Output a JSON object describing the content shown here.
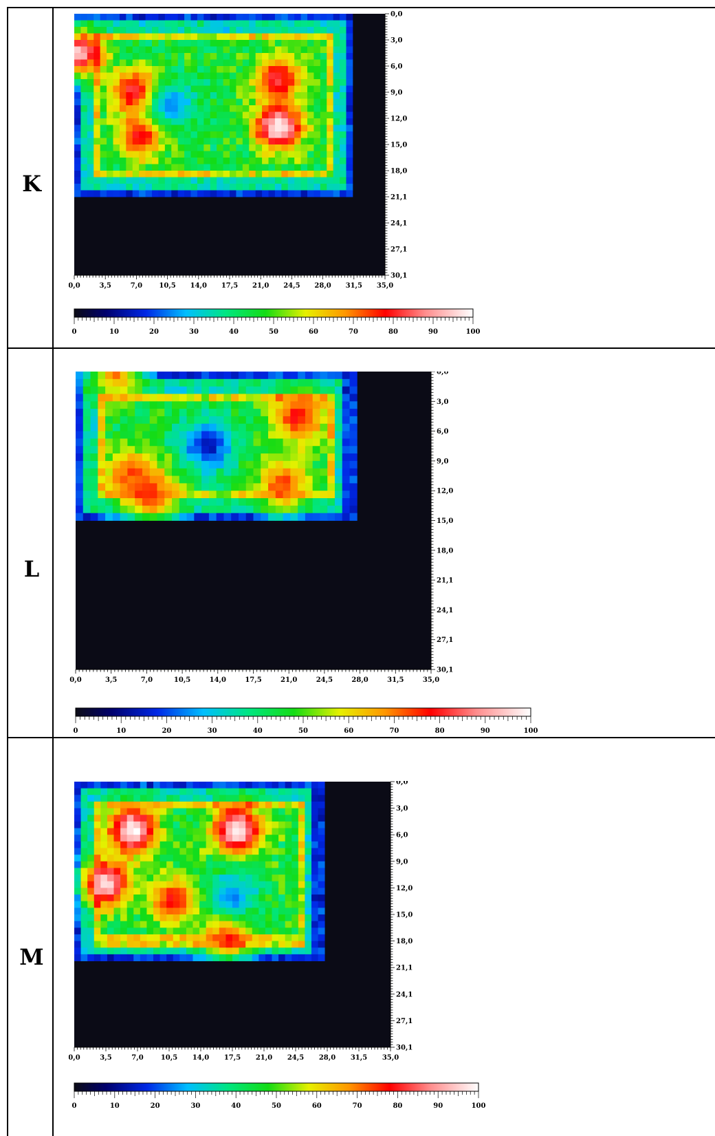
{
  "rows": [
    {
      "label": "K"
    },
    {
      "label": "L"
    },
    {
      "label": "M"
    }
  ],
  "chart_data": [
    {
      "type": "heatmap",
      "panel": "K",
      "x_ticks": [
        "0,0",
        "3,5",
        "7,0",
        "10,5",
        "14,0",
        "17,5",
        "21,0",
        "24,5",
        "28,0",
        "31,5",
        "35,0"
      ],
      "y_ticks": [
        "0,0",
        "3,0",
        "6,0",
        "9,0",
        "12,0",
        "15,0",
        "18,0",
        "21,1",
        "24,1",
        "27,1",
        "30,1"
      ],
      "xlim": [
        0,
        35
      ],
      "ylim": [
        0,
        30.1
      ],
      "y_axis_side": "right",
      "colorbar_ticks": [
        "0",
        "10",
        "20",
        "30",
        "40",
        "50",
        "60",
        "70",
        "80",
        "90",
        "100"
      ],
      "colorbar_range": [
        0,
        100
      ],
      "data_region": {
        "x": [
          0,
          31.5
        ],
        "y": [
          0,
          21.1
        ]
      },
      "hotspots": [
        {
          "x": 0.5,
          "y": 4.5,
          "value": 95
        },
        {
          "x": 7.0,
          "y": 9.0,
          "value": 85
        },
        {
          "x": 7.5,
          "y": 14.0,
          "value": 82
        },
        {
          "x": 23.0,
          "y": 13.0,
          "value": 100
        },
        {
          "x": 23.0,
          "y": 7.5,
          "value": 82
        },
        {
          "x": 11.0,
          "y": 10.5,
          "value": 25
        }
      ]
    },
    {
      "type": "heatmap",
      "panel": "L",
      "x_ticks": [
        "0,0",
        "3,5",
        "7,0",
        "10,5",
        "14,0",
        "17,5",
        "21,0",
        "24,5",
        "28,0",
        "31,5",
        "35,0"
      ],
      "y_ticks": [
        "0,0",
        "3,0",
        "6,0",
        "9,0",
        "12,0",
        "15,0",
        "18,0",
        "21,1",
        "24,1",
        "27,1",
        "30,1"
      ],
      "xlim": [
        0,
        35
      ],
      "ylim": [
        0,
        30.1
      ],
      "y_axis_side": "right",
      "colorbar_ticks": [
        "0",
        "10",
        "20",
        "30",
        "40",
        "50",
        "60",
        "70",
        "80",
        "90",
        "100"
      ],
      "colorbar_range": [
        0,
        100
      ],
      "data_region": {
        "x": [
          0,
          27.5
        ],
        "y": [
          0,
          15.0
        ]
      },
      "hotspots": [
        {
          "x": 5.5,
          "y": 10.5,
          "value": 72
        },
        {
          "x": 7.5,
          "y": 12.5,
          "value": 75
        },
        {
          "x": 20.5,
          "y": 11.5,
          "value": 74
        },
        {
          "x": 22.0,
          "y": 4.5,
          "value": 78
        },
        {
          "x": 4.0,
          "y": 0.3,
          "value": 68
        },
        {
          "x": 13.0,
          "y": 7.5,
          "value": 15
        }
      ]
    },
    {
      "type": "heatmap",
      "panel": "M",
      "x_ticks": [
        "0,0",
        "3,5",
        "7,0",
        "10,5",
        "14,0",
        "17,5",
        "21,0",
        "24,5",
        "28,0",
        "31,5",
        "35,0"
      ],
      "y_ticks": [
        "0,0",
        "3,0",
        "6,0",
        "9,0",
        "12,0",
        "15,0",
        "18,0",
        "21,1",
        "24,1",
        "27,1",
        "30,1"
      ],
      "xlim": [
        0,
        35
      ],
      "ylim": [
        0,
        30.1
      ],
      "y_axis_side": "right",
      "colorbar_ticks": [
        "0",
        "10",
        "20",
        "30",
        "40",
        "50",
        "60",
        "70",
        "80",
        "90",
        "100"
      ],
      "colorbar_range": [
        0,
        100
      ],
      "data_region": {
        "x": [
          0,
          27.5
        ],
        "y": [
          0,
          20.5
        ]
      },
      "hotspots": [
        {
          "x": 6.5,
          "y": 5.5,
          "value": 100
        },
        {
          "x": 18.0,
          "y": 5.5,
          "value": 100
        },
        {
          "x": 3.5,
          "y": 11.5,
          "value": 95
        },
        {
          "x": 11.0,
          "y": 13.5,
          "value": 78
        },
        {
          "x": 17.0,
          "y": 17.5,
          "value": 78
        },
        {
          "x": 17.5,
          "y": 13.0,
          "value": 25
        }
      ]
    }
  ]
}
